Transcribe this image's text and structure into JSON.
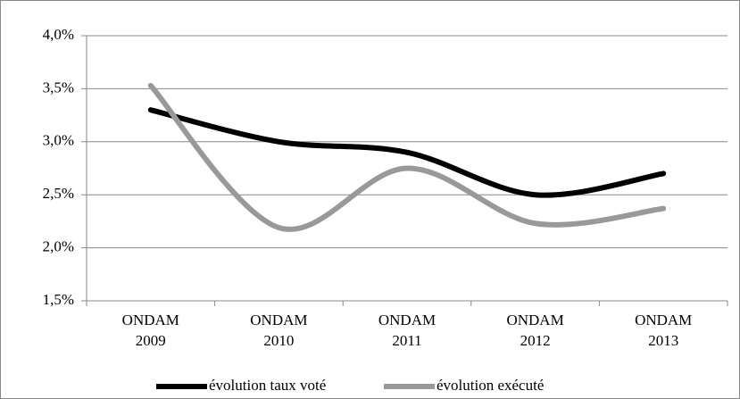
{
  "chart_data": {
    "type": "line",
    "smooth": true,
    "categories": [
      "ONDAM 2009",
      "ONDAM 2010",
      "ONDAM 2011",
      "ONDAM 2012",
      "ONDAM 2013"
    ],
    "series": [
      {
        "name": "évolution taux voté",
        "color": "#000000",
        "values": [
          3.3,
          3.0,
          2.9,
          2.5,
          2.7
        ]
      },
      {
        "name": "évolution exécuté",
        "color": "#999999",
        "values": [
          3.53,
          2.19,
          2.75,
          2.23,
          2.37
        ]
      }
    ],
    "ylim": [
      1.5,
      4.0
    ],
    "yticks": [
      {
        "value": 1.5,
        "label": "1,5%"
      },
      {
        "value": 2.0,
        "label": "2,0%"
      },
      {
        "value": 2.5,
        "label": "2,5%"
      },
      {
        "value": 3.0,
        "label": "3,0%"
      },
      {
        "value": 3.5,
        "label": "3,5%"
      },
      {
        "value": 4.0,
        "label": "4,0%"
      }
    ],
    "grid": true,
    "legend": "bottom"
  }
}
